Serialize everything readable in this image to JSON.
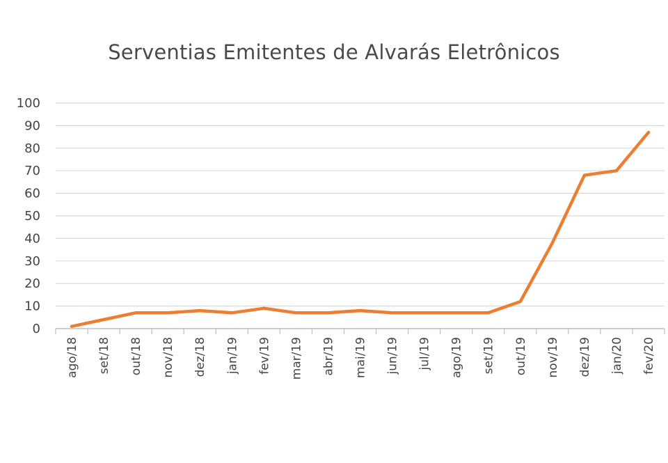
{
  "chart_data": {
    "type": "line",
    "title": "Serventias Emitentes de Alvarás Eletrônicos",
    "xlabel": "",
    "ylabel": "",
    "categories": [
      "ago/18",
      "set/18",
      "out/18",
      "nov/18",
      "dez/18",
      "jan/19",
      "fev/19",
      "mar/19",
      "abr/19",
      "mai/19",
      "jun/19",
      "jul/19",
      "ago/19",
      "set/19",
      "out/19",
      "nov/19",
      "dez/19",
      "jan/20",
      "fev/20"
    ],
    "series": [
      {
        "values": [
          1,
          4,
          7,
          7,
          8,
          7,
          9,
          7,
          7,
          8,
          7,
          7,
          7,
          7,
          12,
          38,
          68,
          70,
          87
        ],
        "color": "#ED7D31"
      }
    ],
    "ylim": [
      0,
      100
    ],
    "yticks": [
      0,
      10,
      20,
      30,
      40,
      50,
      60,
      70,
      80,
      90,
      100
    ],
    "grid": true,
    "legend": "none"
  }
}
